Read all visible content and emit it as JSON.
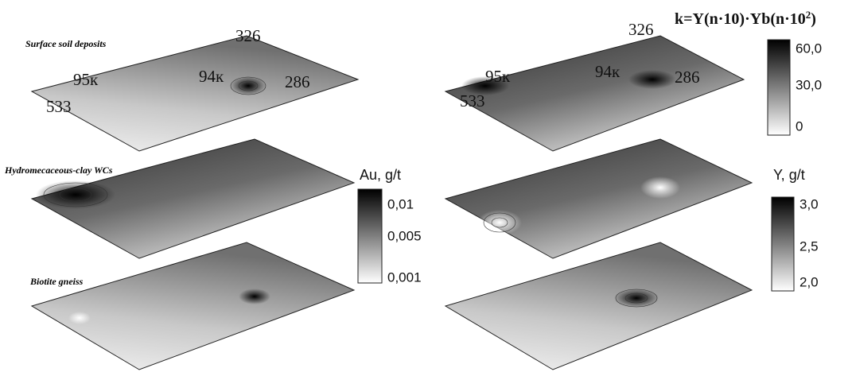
{
  "layers": [
    "Surface soil deposits",
    "Hydromecaceous-clay WCs",
    "Biotite gneiss"
  ],
  "wells": {
    "left": [
      "326",
      "95к",
      "94к",
      "286",
      "533"
    ],
    "right": [
      "326",
      "95к",
      "94к",
      "286",
      "533"
    ]
  },
  "legend_au": {
    "title": "Au, g/t",
    "ticks": [
      "0,01",
      "0,005",
      "0,001"
    ]
  },
  "legend_y": {
    "title": "Y, g/t",
    "ticks": [
      "3,0",
      "2,5",
      "2,0"
    ]
  },
  "legend_k": {
    "title": [
      "k=Y(n·10)·Yb(n·10",
      "2",
      ")"
    ],
    "ticks": [
      "60,0",
      "30,0",
      "0"
    ]
  }
}
